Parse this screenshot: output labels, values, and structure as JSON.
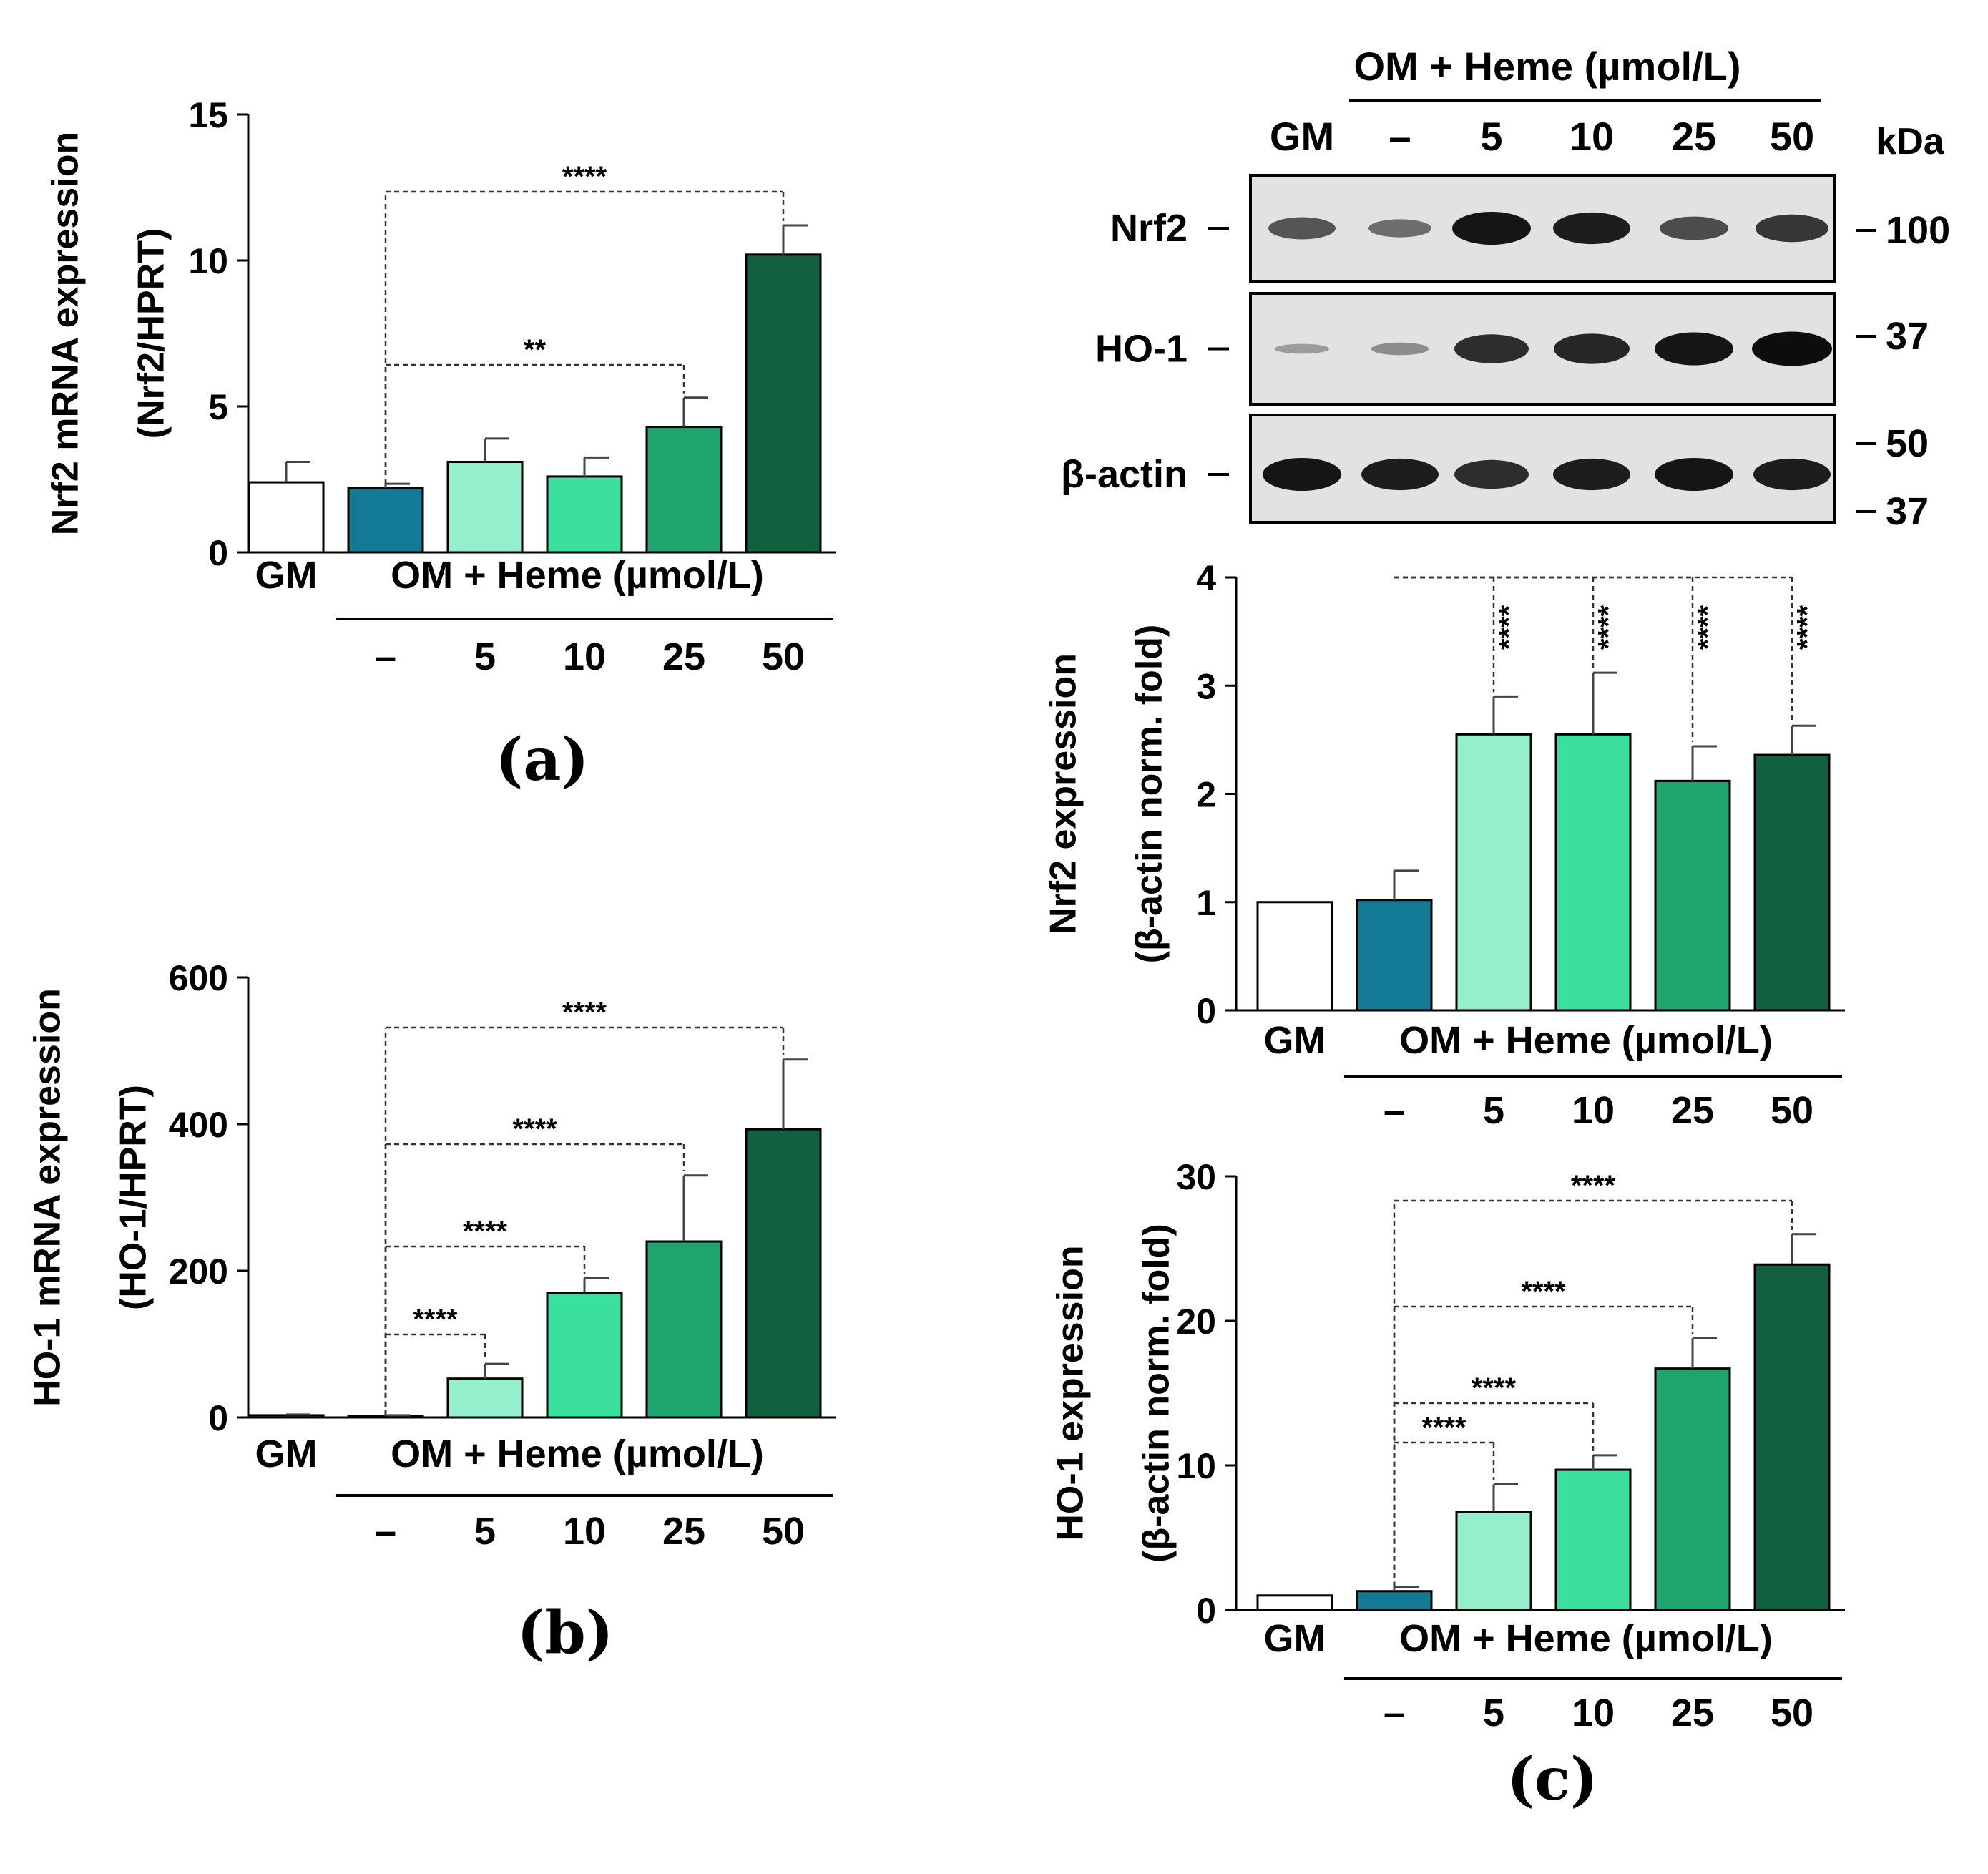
{
  "colors": {
    "GM": "#ffffff",
    "OM": "#127a94",
    "H5": "#94f0cc",
    "H10": "#3ce09e",
    "H25": "#1fa46e",
    "H50": "#11603f",
    "axis": "#000000",
    "blot_bg": "#e2e2e2",
    "band": "#0d0d0d"
  },
  "x_axis": {
    "gm_label": "GM",
    "group_label": "OM + Heme (µmol/L)",
    "dose_labels": [
      "–",
      "5",
      "10",
      "25",
      "50"
    ]
  },
  "blot": {
    "header": "OM + Heme (µmol/L)",
    "lane_labels": [
      "GM",
      "–",
      "5",
      "10",
      "25",
      "50"
    ],
    "kda_label": "kDa",
    "rows": [
      {
        "label": "Nrf2",
        "markers": [
          "100"
        ],
        "intensities": [
          0.55,
          0.4,
          0.95,
          0.9,
          0.6,
          0.75
        ]
      },
      {
        "label": "HO-1",
        "markers": [
          "37"
        ],
        "intensities": [
          0.1,
          0.2,
          0.8,
          0.85,
          0.95,
          1.0
        ]
      },
      {
        "label": "β-actin",
        "markers": [
          "50",
          "37"
        ],
        "intensities": [
          0.95,
          0.9,
          0.8,
          0.9,
          0.95,
          0.9
        ]
      }
    ]
  },
  "chart_data": [
    {
      "type": "bar",
      "panel": "(a)",
      "ylabel": "Nrf2 mRNA expression",
      "ylabel2": "(Nrf2/HPRT)",
      "ylim": [
        0,
        15
      ],
      "yticks": [
        0,
        5,
        10,
        15
      ],
      "categories": [
        "GM",
        "–",
        "5",
        "10",
        "25",
        "50"
      ],
      "values": [
        2.4,
        2.2,
        3.1,
        2.6,
        4.3,
        10.2
      ],
      "errors": [
        0.7,
        0.15,
        0.8,
        0.65,
        1.0,
        1.0
      ],
      "significance": [
        {
          "from": 1,
          "to": 4,
          "label": "**"
        },
        {
          "from": 1,
          "to": 5,
          "label": "****"
        }
      ]
    },
    {
      "type": "bar",
      "panel": "(b)",
      "ylabel": "HO-1 mRNA expression",
      "ylabel2": "(HO-1/HPRT)",
      "ylim": [
        0,
        600
      ],
      "yticks": [
        0,
        200,
        400,
        600
      ],
      "categories": [
        "GM",
        "–",
        "5",
        "10",
        "25",
        "50"
      ],
      "values": [
        3,
        2,
        53,
        170,
        240,
        393
      ],
      "errors": [
        1,
        1,
        20,
        20,
        90,
        95
      ],
      "significance": [
        {
          "from": 1,
          "to": 2,
          "label": "****"
        },
        {
          "from": 1,
          "to": 3,
          "label": "****"
        },
        {
          "from": 1,
          "to": 4,
          "label": "****"
        },
        {
          "from": 1,
          "to": 5,
          "label": "****"
        }
      ]
    },
    {
      "type": "bar",
      "panel": "",
      "ylabel": "Nrf2 expression",
      "ylabel2": "(β-actin norm. fold)",
      "ylim": [
        0,
        4
      ],
      "yticks": [
        0,
        1,
        2,
        3,
        4
      ],
      "categories": [
        "GM",
        "–",
        "5",
        "10",
        "25",
        "50"
      ],
      "values": [
        1.0,
        1.02,
        2.55,
        2.55,
        2.12,
        2.36
      ],
      "errors": [
        0,
        0.27,
        0.35,
        0.57,
        0.32,
        0.27
      ],
      "significance": [
        {
          "from": 1,
          "to": 2,
          "label": "****"
        },
        {
          "from": 1,
          "to": 3,
          "label": "****"
        },
        {
          "from": 1,
          "to": 4,
          "label": "****"
        },
        {
          "from": 1,
          "to": 5,
          "label": "****"
        }
      ]
    },
    {
      "type": "bar",
      "panel": "(c)",
      "ylabel": "HO-1 expression",
      "ylabel2": "(β-actin norm. fold)",
      "ylim": [
        0,
        30
      ],
      "yticks": [
        0,
        10,
        20,
        30
      ],
      "categories": [
        "GM",
        "–",
        "5",
        "10",
        "25",
        "50"
      ],
      "values": [
        1.0,
        1.3,
        6.8,
        9.7,
        16.7,
        23.9
      ],
      "errors": [
        0,
        0.3,
        1.9,
        1.0,
        2.1,
        2.1
      ],
      "significance": [
        {
          "from": 1,
          "to": 2,
          "label": "****"
        },
        {
          "from": 1,
          "to": 3,
          "label": "****"
        },
        {
          "from": 1,
          "to": 4,
          "label": "****"
        },
        {
          "from": 1,
          "to": 5,
          "label": "****"
        }
      ]
    }
  ]
}
